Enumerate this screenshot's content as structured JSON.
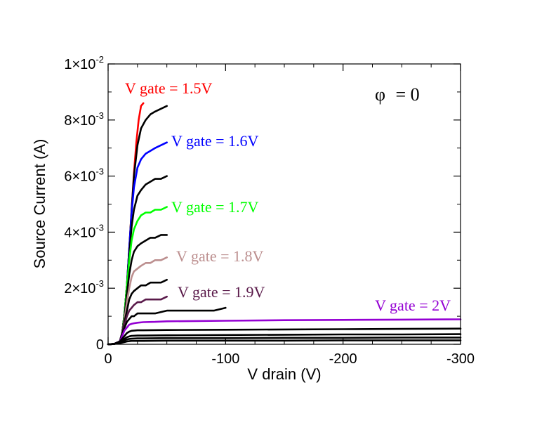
{
  "chart_data": {
    "type": "line",
    "title": "",
    "xlabel": "V drain (V)",
    "ylabel": "Source Current (A)",
    "xlim": [
      0,
      -300
    ],
    "ylim": [
      0,
      0.01
    ],
    "grid": false,
    "annotation": {
      "symbol": "φ",
      "text": " = 0"
    },
    "x_ticks": [
      {
        "value": 0,
        "label": "0"
      },
      {
        "value": -100,
        "label": "-100"
      },
      {
        "value": -200,
        "label": "-200"
      },
      {
        "value": -300,
        "label": "-300"
      }
    ],
    "y_ticks": [
      {
        "value": 0,
        "mantissa": "0",
        "exponent": ""
      },
      {
        "value": 0.002,
        "mantissa": "2×10",
        "exponent": "-3"
      },
      {
        "value": 0.004,
        "mantissa": "4×10",
        "exponent": "-3"
      },
      {
        "value": 0.006,
        "mantissa": "6×10",
        "exponent": "-3"
      },
      {
        "value": 0.008,
        "mantissa": "8×10",
        "exponent": "-3"
      },
      {
        "value": 0.01,
        "mantissa": "1×10",
        "exponent": "-2"
      }
    ],
    "series": [
      {
        "name": "V gate = 1.5V",
        "color": "#ff0000",
        "labeled": true,
        "x": [
          0,
          -5,
          -10,
          -12,
          -14,
          -16,
          -18,
          -20,
          -22,
          -24,
          -26,
          -28,
          -30
        ],
        "y": [
          0,
          1e-05,
          0.0001,
          0.0004,
          0.0011,
          0.0021,
          0.0034,
          0.0048,
          0.0061,
          0.0072,
          0.008,
          0.0085,
          0.0086
        ]
      },
      {
        "name": "",
        "color": "#000000",
        "labeled": false,
        "x": [
          0,
          -5,
          -10,
          -12,
          -14,
          -16,
          -18,
          -20,
          -22,
          -25,
          -28,
          -32,
          -36,
          -40,
          -45,
          -50
        ],
        "y": [
          0,
          1e-05,
          0.0001,
          0.0004,
          0.0011,
          0.0021,
          0.0034,
          0.0048,
          0.006,
          0.0071,
          0.0077,
          0.008,
          0.0082,
          0.0083,
          0.0084,
          0.0085
        ]
      },
      {
        "name": "V gate = 1.6V",
        "color": "#0000ff",
        "labeled": true,
        "x": [
          0,
          -5,
          -10,
          -12,
          -14,
          -16,
          -18,
          -20,
          -22,
          -25,
          -28,
          -32,
          -36,
          -40,
          -45,
          -50
        ],
        "y": [
          0,
          1e-05,
          0.0001,
          0.0004,
          0.0011,
          0.0021,
          0.0034,
          0.0047,
          0.0056,
          0.0063,
          0.0066,
          0.0068,
          0.0069,
          0.007,
          0.0071,
          0.0072
        ]
      },
      {
        "name": "",
        "color": "#000000",
        "labeled": false,
        "x": [
          0,
          -5,
          -10,
          -12,
          -14,
          -16,
          -18,
          -20,
          -22,
          -25,
          -28,
          -32,
          -36,
          -40,
          -45,
          -50
        ],
        "y": [
          0,
          1e-05,
          0.0001,
          0.0004,
          0.0011,
          0.0021,
          0.0032,
          0.0042,
          0.0048,
          0.0053,
          0.0055,
          0.0057,
          0.0058,
          0.0059,
          0.0059,
          0.006
        ]
      },
      {
        "name": "V gate = 1.7V",
        "color": "#00ff00",
        "labeled": true,
        "x": [
          0,
          -5,
          -10,
          -12,
          -14,
          -16,
          -18,
          -20,
          -22,
          -25,
          -28,
          -32,
          -36,
          -40,
          -45,
          -50
        ],
        "y": [
          0,
          1e-05,
          0.0001,
          0.0004,
          0.0011,
          0.0021,
          0.003,
          0.0037,
          0.0041,
          0.0044,
          0.0046,
          0.0047,
          0.0047,
          0.0048,
          0.0048,
          0.0049
        ]
      },
      {
        "name": "",
        "color": "#000000",
        "labeled": false,
        "x": [
          0,
          -5,
          -10,
          -12,
          -14,
          -16,
          -18,
          -20,
          -22,
          -25,
          -28,
          -32,
          -36,
          -40,
          -45,
          -50
        ],
        "y": [
          0,
          1e-05,
          0.0001,
          0.0004,
          0.001,
          0.0018,
          0.0025,
          0.003,
          0.0033,
          0.0035,
          0.0036,
          0.0037,
          0.0038,
          0.0038,
          0.0039,
          0.0039
        ]
      },
      {
        "name": "V gate = 1.8V",
        "color": "#bc8f8f",
        "labeled": true,
        "x": [
          0,
          -5,
          -10,
          -12,
          -14,
          -16,
          -18,
          -20,
          -22,
          -25,
          -28,
          -32,
          -36,
          -40,
          -45,
          -50
        ],
        "y": [
          0,
          1e-05,
          0.0001,
          0.0004,
          0.0009,
          0.0015,
          0.002,
          0.0024,
          0.0026,
          0.0027,
          0.0028,
          0.0029,
          0.0029,
          0.003,
          0.003,
          0.0031
        ]
      },
      {
        "name": "",
        "color": "#000000",
        "labeled": false,
        "x": [
          0,
          -5,
          -10,
          -12,
          -14,
          -16,
          -18,
          -20,
          -22,
          -25,
          -28,
          -32,
          -36,
          -40,
          -45,
          -50
        ],
        "y": [
          0,
          1e-05,
          0.0001,
          0.0004,
          0.0008,
          0.0012,
          0.0016,
          0.0018,
          0.0019,
          0.002,
          0.0021,
          0.0021,
          0.0022,
          0.0022,
          0.0022,
          0.0023
        ]
      },
      {
        "name": "V gate = 1.9V",
        "color": "#5a1a4a",
        "labeled": true,
        "x": [
          0,
          -5,
          -10,
          -12,
          -14,
          -16,
          -18,
          -20,
          -22,
          -25,
          -28,
          -32,
          -36,
          -40,
          -45,
          -50
        ],
        "y": [
          0,
          1e-05,
          0.0001,
          0.0004,
          0.0007,
          0.001,
          0.0012,
          0.0013,
          0.0014,
          0.0015,
          0.0015,
          0.0016,
          0.0016,
          0.0016,
          0.0016,
          0.0017
        ]
      },
      {
        "name": "",
        "color": "#000000",
        "labeled": false,
        "x": [
          0,
          -5,
          -10,
          -12,
          -14,
          -16,
          -18,
          -20,
          -22,
          -25,
          -30,
          -40,
          -50,
          -60,
          -70,
          -80,
          -90,
          -100
        ],
        "y": [
          0,
          1e-05,
          0.0001,
          0.0004,
          0.0006,
          0.0008,
          0.0009,
          0.001,
          0.001,
          0.0011,
          0.0011,
          0.0011,
          0.0012,
          0.0012,
          0.0012,
          0.0012,
          0.0012,
          0.0013
        ]
      },
      {
        "name": "V gate = 2V",
        "color": "#9400d3",
        "labeled": true,
        "x": [
          0,
          -5,
          -10,
          -12,
          -14,
          -16,
          -18,
          -20,
          -22,
          -25,
          -30,
          -40,
          -50,
          -75,
          -100,
          -150,
          -200,
          -250,
          -300
        ],
        "y": [
          0,
          1e-05,
          0.0001,
          0.0003,
          0.0005,
          0.0006,
          0.0007,
          0.00073,
          0.00075,
          0.00077,
          0.00079,
          0.0008,
          0.00082,
          0.00083,
          0.00084,
          0.00086,
          0.00087,
          0.00088,
          0.00089
        ]
      },
      {
        "name": "",
        "color": "#000000",
        "labeled": false,
        "x": [
          0,
          -5,
          -10,
          -12,
          -14,
          -16,
          -18,
          -20,
          -25,
          -30,
          -50,
          -100,
          -150,
          -200,
          -250,
          -300
        ],
        "y": [
          0,
          1e-05,
          0.0001,
          0.0002,
          0.0003,
          0.0004,
          0.00045,
          0.00048,
          0.0005,
          0.0005,
          0.00051,
          0.00052,
          0.00053,
          0.00054,
          0.00055,
          0.00056
        ]
      },
      {
        "name": "",
        "color": "#000000",
        "labeled": false,
        "x": [
          0,
          -5,
          -10,
          -12,
          -14,
          -16,
          -18,
          -20,
          -25,
          -30,
          -50,
          -100,
          -150,
          -200,
          -250,
          -300
        ],
        "y": [
          0,
          1e-05,
          8e-05,
          0.00015,
          0.0002,
          0.00025,
          0.00028,
          0.0003,
          0.00031,
          0.00031,
          0.00032,
          0.00033,
          0.00034,
          0.00035,
          0.00035,
          0.00036
        ]
      },
      {
        "name": "",
        "color": "#000000",
        "labeled": false,
        "x": [
          0,
          -5,
          -10,
          -12,
          -14,
          -16,
          -18,
          -20,
          -25,
          -30,
          -50,
          -100,
          -150,
          -200,
          -250,
          -300
        ],
        "y": [
          0,
          1e-05,
          6e-05,
          0.0001,
          0.00014,
          0.00017,
          0.00019,
          0.0002,
          0.00021,
          0.00021,
          0.00022,
          0.00022,
          0.00023,
          0.00023,
          0.00024,
          0.00024
        ]
      },
      {
        "name": "",
        "color": "#000000",
        "labeled": false,
        "x": [
          0,
          -5,
          -10,
          -12,
          -14,
          -16,
          -18,
          -20,
          -25,
          -30,
          -50,
          -100,
          -150,
          -200,
          -250,
          -300
        ],
        "y": [
          0,
          1e-05,
          4e-05,
          6e-05,
          8e-05,
          0.0001,
          0.00011,
          0.00012,
          0.00012,
          0.00012,
          0.00013,
          0.00013,
          0.00013,
          0.00014,
          0.00014,
          0.00014
        ]
      }
    ]
  }
}
